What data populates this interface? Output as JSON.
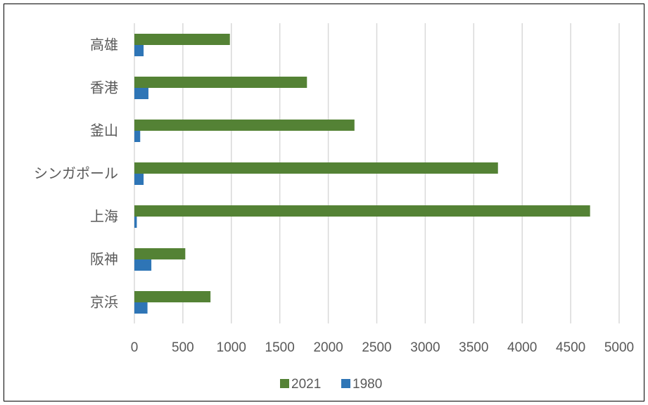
{
  "chart_data": {
    "type": "bar",
    "orientation": "horizontal",
    "categories": [
      "高雄",
      "香港",
      "釜山",
      "シンガポール",
      "上海",
      "阪神",
      "京浜"
    ],
    "series": [
      {
        "name": "2021",
        "color": "#548235",
        "values": [
          985,
          1780,
          2270,
          3750,
          4700,
          525,
          785
        ]
      },
      {
        "name": "1980",
        "color": "#2E75B6",
        "values": [
          95,
          145,
          60,
          95,
          25,
          175,
          135
        ]
      }
    ],
    "xticks": [
      "0",
      "500",
      "1000",
      "1500",
      "2000",
      "2500",
      "3000",
      "3500",
      "4000",
      "4500",
      "5000"
    ],
    "xlim": [
      0,
      5000
    ],
    "grid": true,
    "legend_position": "bottom",
    "legend": [
      "2021",
      "1980"
    ]
  }
}
